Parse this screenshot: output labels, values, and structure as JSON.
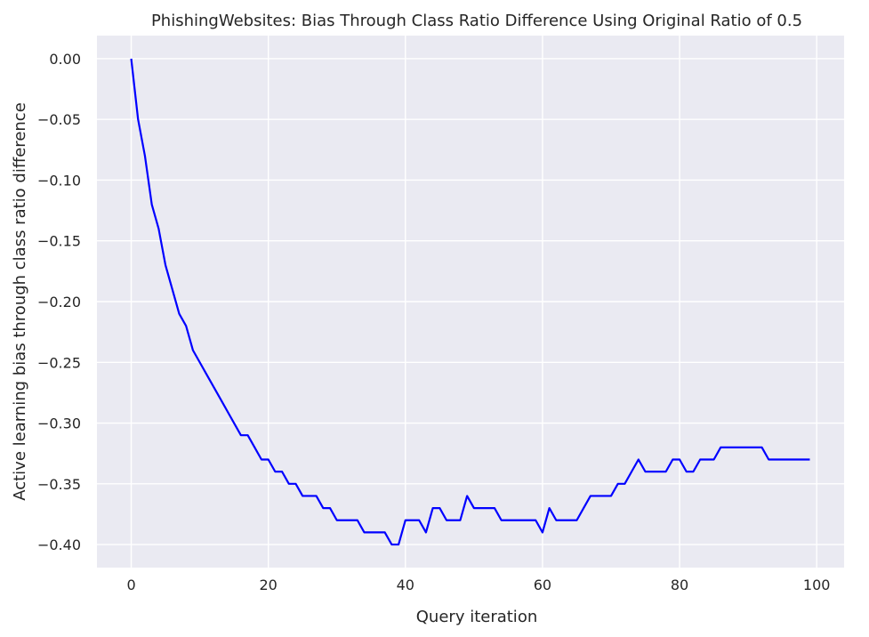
{
  "chart_data": {
    "type": "line",
    "title": "PhishingWebsites: Bias Through Class Ratio Difference Using Original Ratio of 0.5",
    "xlabel": "Query iteration",
    "ylabel": "Active learning bias through class ratio difference",
    "xlim": [
      -5,
      104
    ],
    "ylim": [
      -0.419,
      0.019
    ],
    "xticks": [
      0,
      20,
      40,
      60,
      80,
      100
    ],
    "xtick_labels": [
      "0",
      "20",
      "40",
      "60",
      "80",
      "100"
    ],
    "yticks": [
      0.0,
      -0.05,
      -0.1,
      -0.15,
      -0.2,
      -0.25,
      -0.3,
      -0.35,
      -0.4
    ],
    "ytick_labels": [
      "0.00",
      "−0.05",
      "−0.10",
      "−0.15",
      "−0.20",
      "−0.25",
      "−0.30",
      "−0.35",
      "−0.40"
    ],
    "grid": true,
    "colors": {
      "line": "#0000ff",
      "background": "#eaeaf2",
      "grid": "#ffffff"
    },
    "series": [
      {
        "x": [
          0,
          1,
          2,
          3,
          4,
          5,
          6,
          7,
          8,
          9,
          10,
          11,
          12,
          13,
          14,
          15,
          16,
          17,
          18,
          19,
          20,
          21,
          22,
          23,
          24,
          25,
          26,
          27,
          28,
          29,
          30,
          31,
          32,
          33,
          34,
          35,
          36,
          37,
          38,
          39,
          40,
          41,
          42,
          43,
          44,
          45,
          46,
          47,
          48,
          49,
          50,
          51,
          52,
          53,
          54,
          55,
          56,
          57,
          58,
          59,
          60,
          61,
          62,
          63,
          64,
          65,
          66,
          67,
          68,
          69,
          70,
          71,
          72,
          73,
          74,
          75,
          76,
          77,
          78,
          79,
          80,
          81,
          82,
          83,
          84,
          85,
          86,
          87,
          88,
          89,
          90,
          91,
          92,
          93,
          94,
          95,
          96,
          97,
          98,
          99
        ],
        "values": [
          0.0,
          -0.05,
          -0.08,
          -0.12,
          -0.14,
          -0.17,
          -0.19,
          -0.21,
          -0.22,
          -0.24,
          -0.25,
          -0.26,
          -0.27,
          -0.28,
          -0.29,
          -0.3,
          -0.31,
          -0.31,
          -0.32,
          -0.33,
          -0.33,
          -0.34,
          -0.34,
          -0.35,
          -0.35,
          -0.36,
          -0.36,
          -0.36,
          -0.37,
          -0.37,
          -0.38,
          -0.38,
          -0.38,
          -0.38,
          -0.39,
          -0.39,
          -0.39,
          -0.39,
          -0.4,
          -0.4,
          -0.38,
          -0.38,
          -0.38,
          -0.39,
          -0.37,
          -0.37,
          -0.38,
          -0.38,
          -0.38,
          -0.36,
          -0.37,
          -0.37,
          -0.37,
          -0.37,
          -0.38,
          -0.38,
          -0.38,
          -0.38,
          -0.38,
          -0.38,
          -0.39,
          -0.37,
          -0.38,
          -0.38,
          -0.38,
          -0.38,
          -0.37,
          -0.36,
          -0.36,
          -0.36,
          -0.36,
          -0.35,
          -0.35,
          -0.34,
          -0.33,
          -0.34,
          -0.34,
          -0.34,
          -0.34,
          -0.33,
          -0.33,
          -0.34,
          -0.34,
          -0.33,
          -0.33,
          -0.33,
          -0.32,
          -0.32,
          -0.32,
          -0.32,
          -0.32,
          -0.32,
          -0.32,
          -0.33,
          -0.33,
          -0.33,
          -0.33,
          -0.33,
          -0.33,
          -0.33
        ]
      }
    ]
  }
}
